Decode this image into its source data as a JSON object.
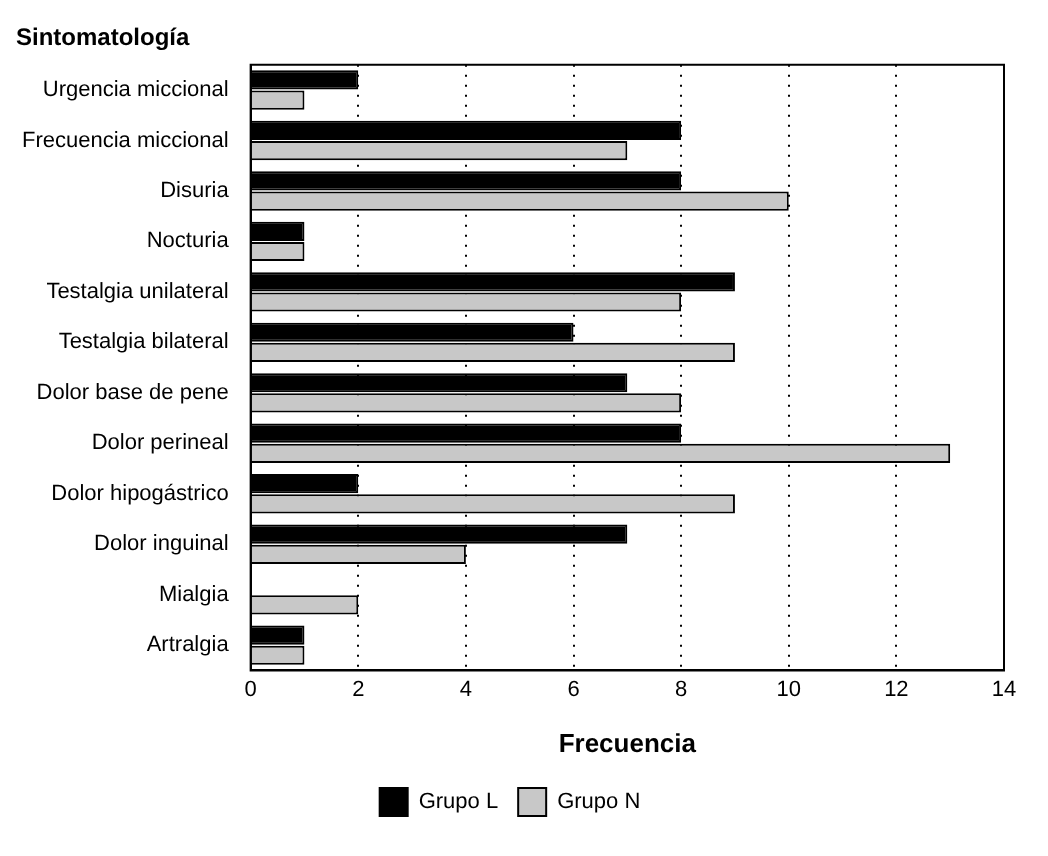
{
  "chart_data": {
    "type": "bar",
    "orientation": "horizontal",
    "title": "Sintomatología",
    "xlabel": "Frecuencia",
    "categories": [
      "Urgencia miccional",
      "Frecuencia miccional",
      "Disuria",
      "Nocturia",
      "Testalgia unilateral",
      "Testalgia bilateral",
      "Dolor base de pene",
      "Dolor perineal",
      "Dolor hipogástrico",
      "Dolor inguinal",
      "Mialgia",
      "Artralgia"
    ],
    "series": [
      {
        "name": "Grupo L",
        "color": "#000000",
        "values": [
          2,
          8,
          8,
          1,
          9,
          6,
          7,
          8,
          2,
          7,
          0,
          1
        ]
      },
      {
        "name": "Grupo N",
        "color": "#c8c8c8",
        "values": [
          1,
          7,
          10,
          1,
          8,
          9,
          8,
          13,
          9,
          4,
          2,
          1
        ]
      }
    ],
    "xlim": [
      0,
      14
    ],
    "xticks": [
      0,
      2,
      4,
      6,
      8,
      10,
      12,
      14
    ],
    "grid": "x",
    "legend": "bottom"
  }
}
